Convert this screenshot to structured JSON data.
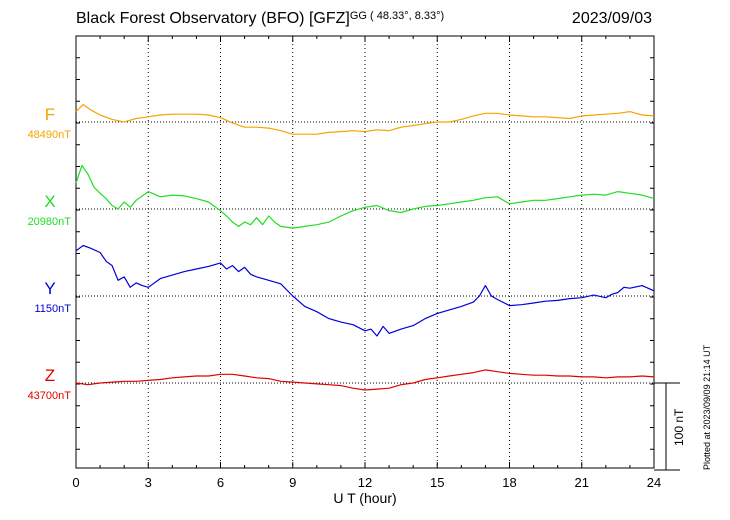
{
  "header": {
    "title": "Black Forest Observatory (BFO)  [GFZ]",
    "coords": "GG ( 48.33°,   8.33°)",
    "date": "2023/09/03"
  },
  "footer": {
    "xlabel": "U T (hour)",
    "plotted": "Plotted at 2023/09/09 21:14 UT"
  },
  "scale": {
    "label": "100 nT",
    "nT": 100
  },
  "chart_data": {
    "type": "line",
    "xlabel": "U T (hour)",
    "xlim": [
      0,
      24
    ],
    "xticks": [
      0,
      3,
      6,
      9,
      12,
      15,
      18,
      21,
      24
    ],
    "grid": true,
    "series": [
      {
        "name": "F",
        "baseline_label": "48490nT",
        "baseline_nT": 48490,
        "color": "#f5a300",
        "x": [
          0,
          0.3,
          0.6,
          1,
          1.5,
          2,
          2.5,
          3,
          3.5,
          4,
          4.5,
          5,
          5.5,
          6,
          6.5,
          7,
          7.5,
          8,
          8.5,
          9,
          9.5,
          10,
          10.5,
          11,
          11.5,
          12,
          12.5,
          13,
          13.5,
          14,
          14.5,
          15,
          15.5,
          16,
          16.5,
          17,
          17.5,
          18,
          18.5,
          19,
          19.5,
          20,
          20.5,
          21,
          21.5,
          22,
          22.5,
          23,
          23.5,
          24
        ],
        "y": [
          48502,
          48510,
          48504,
          48498,
          48493,
          48490,
          48494,
          48496,
          48498,
          48499,
          48499,
          48499,
          48498,
          48495,
          48489,
          48484,
          48484,
          48483,
          48480,
          48476,
          48476,
          48476,
          48478,
          48479,
          48480,
          48479,
          48481,
          48480,
          48484,
          48486,
          48488,
          48490,
          48490,
          48493,
          48497,
          48500,
          48500,
          48498,
          48497,
          48496,
          48496,
          48495,
          48494,
          48497,
          48498,
          48499,
          48500,
          48502,
          48498,
          48497
        ]
      },
      {
        "name": "X",
        "baseline_label": "20980nT",
        "baseline_nT": 20980,
        "color": "#22dd22",
        "x": [
          0,
          0.25,
          0.5,
          0.75,
          1,
          1.25,
          1.5,
          1.75,
          2,
          2.25,
          2.5,
          3,
          3.5,
          4,
          4.5,
          5,
          5.5,
          6,
          6.25,
          6.5,
          6.75,
          7,
          7.25,
          7.5,
          7.75,
          8,
          8.25,
          8.5,
          9,
          9.5,
          10,
          10.5,
          11,
          11.5,
          12,
          12.5,
          13,
          13.5,
          14,
          14.5,
          15,
          15.5,
          16,
          16.5,
          17,
          17.5,
          18,
          18.5,
          19,
          19.5,
          20,
          20.5,
          21,
          21.5,
          22,
          22.5,
          23,
          23.5,
          24
        ],
        "y": [
          21010,
          21030,
          21020,
          21005,
          20998,
          20992,
          20984,
          20980,
          20988,
          20982,
          20990,
          21000,
          20994,
          20996,
          20995,
          20992,
          20988,
          20978,
          20972,
          20965,
          20960,
          20965,
          20962,
          20970,
          20962,
          20972,
          20965,
          20960,
          20958,
          20960,
          20962,
          20965,
          20972,
          20978,
          20982,
          20984,
          20978,
          20976,
          20980,
          20983,
          20984,
          20986,
          20988,
          20990,
          20993,
          20994,
          20986,
          20988,
          20990,
          20990,
          20992,
          20994,
          20996,
          20997,
          20996,
          21000,
          20998,
          20996,
          20992
        ]
      },
      {
        "name": "Y",
        "baseline_label": "1150nT",
        "baseline_nT": 1150,
        "color": "#0000dd",
        "x": [
          0,
          0.3,
          0.6,
          1,
          1.25,
          1.5,
          1.75,
          2,
          2.25,
          2.5,
          2.75,
          3,
          3.5,
          4,
          4.5,
          5,
          5.5,
          6,
          6.25,
          6.5,
          6.75,
          7,
          7.25,
          7.5,
          7.75,
          8,
          8.5,
          9,
          9.5,
          10,
          10.5,
          11,
          11.5,
          12,
          12.25,
          12.5,
          12.75,
          13,
          13.5,
          14,
          14.5,
          15,
          15.5,
          16,
          16.5,
          16.75,
          17,
          17.25,
          17.5,
          18,
          18.5,
          19,
          19.5,
          20,
          20.5,
          21,
          21.5,
          22,
          22.25,
          22.5,
          22.75,
          23,
          23.5,
          24
        ],
        "y": [
          1202,
          1208,
          1205,
          1200,
          1190,
          1185,
          1168,
          1172,
          1160,
          1165,
          1162,
          1160,
          1170,
          1174,
          1178,
          1181,
          1184,
          1188,
          1181,
          1185,
          1178,
          1183,
          1175,
          1172,
          1170,
          1168,
          1164,
          1150,
          1138,
          1132,
          1124,
          1120,
          1117,
          1110,
          1112,
          1104,
          1115,
          1107,
          1112,
          1116,
          1124,
          1130,
          1134,
          1138,
          1143,
          1150,
          1162,
          1150,
          1146,
          1139,
          1140,
          1142,
          1144,
          1145,
          1147,
          1148,
          1151,
          1148,
          1152,
          1154,
          1160,
          1159,
          1162,
          1156
        ]
      },
      {
        "name": "Z",
        "baseline_label": "43700nT",
        "baseline_nT": 43700,
        "color": "#e00000",
        "x": [
          0,
          0.5,
          1,
          1.5,
          2,
          2.5,
          3,
          3.5,
          4,
          4.5,
          5,
          5.5,
          6,
          6.5,
          7,
          7.5,
          8,
          8.5,
          9,
          9.5,
          10,
          10.5,
          11,
          11.5,
          12,
          12.5,
          13,
          13.5,
          14,
          14.5,
          15,
          15.5,
          16,
          16.5,
          17,
          17.5,
          18,
          18.5,
          19,
          19.5,
          20,
          20.5,
          21,
          21.5,
          22,
          22.5,
          23,
          23.5,
          24
        ],
        "y": [
          43700,
          43698,
          43700,
          43701,
          43702,
          43702,
          43703,
          43704,
          43706,
          43707,
          43708,
          43708,
          43710,
          43710,
          43708,
          43706,
          43705,
          43702,
          43701,
          43700,
          43699,
          43698,
          43697,
          43694,
          43692,
          43693,
          43694,
          43698,
          43700,
          43704,
          43706,
          43708,
          43710,
          43712,
          43715,
          43713,
          43711,
          43710,
          43709,
          43709,
          43708,
          43708,
          43707,
          43707,
          43706,
          43707,
          43707,
          43708,
          43707
        ]
      }
    ]
  }
}
